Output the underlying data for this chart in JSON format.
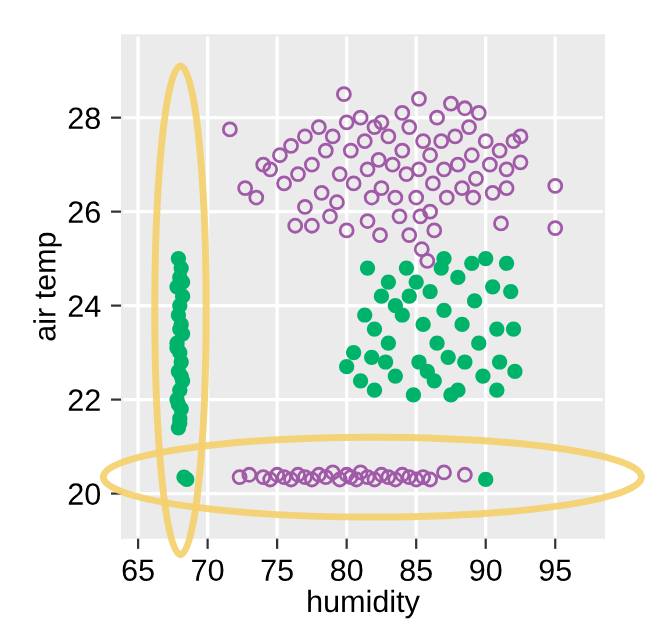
{
  "chart_data": {
    "type": "scatter",
    "xlabel": "humidity",
    "ylabel": "air temp",
    "xlim": [
      63.85,
      98.5
    ],
    "ylim": [
      19.06,
      29.75
    ],
    "xticks": [
      65,
      70,
      75,
      80,
      85,
      90,
      95
    ],
    "yticks": [
      20,
      22,
      24,
      26,
      28
    ],
    "grid": true,
    "marker": "circle",
    "series": [
      {
        "color": "#a05aa8",
        "x": [
          72.7,
          73.5,
          74.0,
          74.5,
          75.2,
          75.5,
          76,
          76.5,
          77,
          77.5,
          77,
          76.3,
          77.5,
          78,
          78.5,
          78.2,
          78.8,
          79,
          79.5,
          79.3,
          80,
          80.3,
          80.5,
          80,
          81,
          81.3,
          81.5,
          81.8,
          81.5,
          82,
          82.3,
          82.5,
          82.4,
          83,
          83.3,
          83.5,
          83.8,
          84,
          84.3,
          84.5,
          85,
          85.2,
          85.5,
          85.3,
          85.2,
          86,
          86.2,
          86.5,
          86.8,
          87,
          87.2,
          87.5,
          87.8,
          88,
          88.3,
          88.5,
          88.8,
          89,
          89.3,
          89.1,
          89.5,
          90,
          90.3,
          90.5,
          91,
          91.5,
          92,
          92.5,
          92.5,
          91.5,
          86,
          86.3,
          84.5,
          85.4,
          85.8,
          79.8,
          71.6,
          95,
          95,
          91.1,
          84,
          82.5,
          72.3,
          73,
          74,
          74.5,
          75,
          75.5,
          76,
          76.5,
          77,
          77.5,
          78,
          78.5,
          79,
          79.5,
          80,
          80.3,
          80.7,
          81,
          81.5,
          82,
          82.5,
          83,
          83.5,
          84,
          84.5,
          85,
          85.5,
          86,
          87,
          88.5
        ],
        "values": [
          26.5,
          26.3,
          27.0,
          26.9,
          27.2,
          26.6,
          27.4,
          26.8,
          27.6,
          27.0,
          26.1,
          25.7,
          25.7,
          27.8,
          27.3,
          26.4,
          25.9,
          27.6,
          26.8,
          26.2,
          27.9,
          27.3,
          26.6,
          25.6,
          28.0,
          27.5,
          26.9,
          26.3,
          25.8,
          27.8,
          27.1,
          26.5,
          25.5,
          27.6,
          27.0,
          26.3,
          25.9,
          27.3,
          26.8,
          27.8,
          26.3,
          26.9,
          27.5,
          25.9,
          28.4,
          27.2,
          26.6,
          28.0,
          27.5,
          26.9,
          26.3,
          28.3,
          27.6,
          27.0,
          26.5,
          28.2,
          27.8,
          27.2,
          26.7,
          26.3,
          28.1,
          27.5,
          27.0,
          26.4,
          27.3,
          26.9,
          27.5,
          27.05,
          27.6,
          26.5,
          26.0,
          25.6,
          25.5,
          25.2,
          24.95,
          28.5,
          27.75,
          26.55,
          25.65,
          25.75,
          28.1,
          27.9,
          20.35,
          20.4,
          20.35,
          20.3,
          20.4,
          20.35,
          20.3,
          20.4,
          20.35,
          20.3,
          20.4,
          20.35,
          20.45,
          20.3,
          20.4,
          20.35,
          20.3,
          20.45,
          20.35,
          20.3,
          20.4,
          20.35,
          20.3,
          20.4,
          20.35,
          20.3,
          20.35,
          20.3,
          20.45,
          20.4
        ]
      },
      {
        "color": "#00b36b",
        "x": [
          67.9,
          68.1,
          68.0,
          67.8,
          68.2,
          68.0,
          67.9,
          68.1,
          68.2,
          67.8,
          68.0,
          68.1,
          67.9,
          68.2,
          68.0,
          67.8,
          68.1,
          68.0,
          67.9,
          68.2,
          68.0,
          68.1,
          67.9,
          68.0,
          67.8,
          68.3,
          68.5,
          81.5,
          82.5,
          83,
          84.3,
          81.3,
          82,
          80.5,
          80,
          81,
          82,
          81.8,
          83,
          83.5,
          84,
          84.5,
          85,
          85.5,
          85.2,
          84.8,
          86,
          86.5,
          86.3,
          86.8,
          87,
          87.3,
          87.5,
          88,
          88.3,
          88.5,
          89,
          89.2,
          89.5,
          89.8,
          90,
          90.5,
          90.8,
          91,
          91.5,
          91.8,
          92,
          92.1,
          90.8,
          88,
          85.8,
          87,
          83.5,
          82.8,
          90
        ],
        "values": [
          25.0,
          24.8,
          24.6,
          24.4,
          24.2,
          24.0,
          23.8,
          23.6,
          23.4,
          23.2,
          23.0,
          22.8,
          22.6,
          22.4,
          22.2,
          22.0,
          21.8,
          21.6,
          21.4,
          24.5,
          23.5,
          22.5,
          21.9,
          21.5,
          23.1,
          20.35,
          20.3,
          24.8,
          24.2,
          24.5,
          24.8,
          23.8,
          23.5,
          23.0,
          22.7,
          22.4,
          22.2,
          22.9,
          23.2,
          22.5,
          23.8,
          24.2,
          24.5,
          23.6,
          22.8,
          22.1,
          24.3,
          23.2,
          22.4,
          24.8,
          23.9,
          22.9,
          22.1,
          24.6,
          23.6,
          22.8,
          24.9,
          24.1,
          23.2,
          22.5,
          25.0,
          24.4,
          23.5,
          22.8,
          24.9,
          24.3,
          23.5,
          22.6,
          22.2,
          22.2,
          22.6,
          25.0,
          24.0,
          22.8,
          20.3
        ]
      }
    ]
  }
}
